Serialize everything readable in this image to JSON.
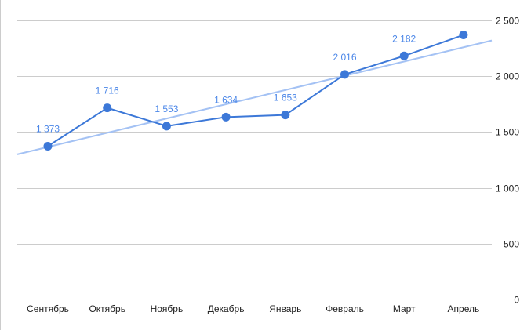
{
  "chart_data": {
    "type": "line",
    "title": "",
    "xlabel": "",
    "ylabel": "",
    "categories": [
      "Сентябрь",
      "Октябрь",
      "Ноябрь",
      "Декабрь",
      "Январь",
      "Февраль",
      "Март",
      "Апрель"
    ],
    "series": [
      {
        "values": [
          1373,
          1716,
          1553,
          1634,
          1653,
          2016,
          2182,
          2370
        ],
        "labels": [
          "1 373",
          "1 716",
          "1 553",
          "1 634",
          "1 653",
          "2 016",
          "2 182",
          ""
        ],
        "color": "#3c78d8",
        "marker": "circle"
      }
    ],
    "trendline": {
      "type": "linear",
      "color": "#a4c2f4",
      "start_value": 1300,
      "end_value": 2320
    },
    "y_axis": {
      "position": "right",
      "ylim": [
        0,
        2500
      ],
      "ticks": [
        0,
        500,
        1000,
        1500,
        2000,
        2500
      ],
      "tick_labels": [
        "0",
        "500",
        "1 000",
        "1 500",
        "2 000",
        "2 500"
      ]
    },
    "grid": true,
    "legend": "none"
  }
}
